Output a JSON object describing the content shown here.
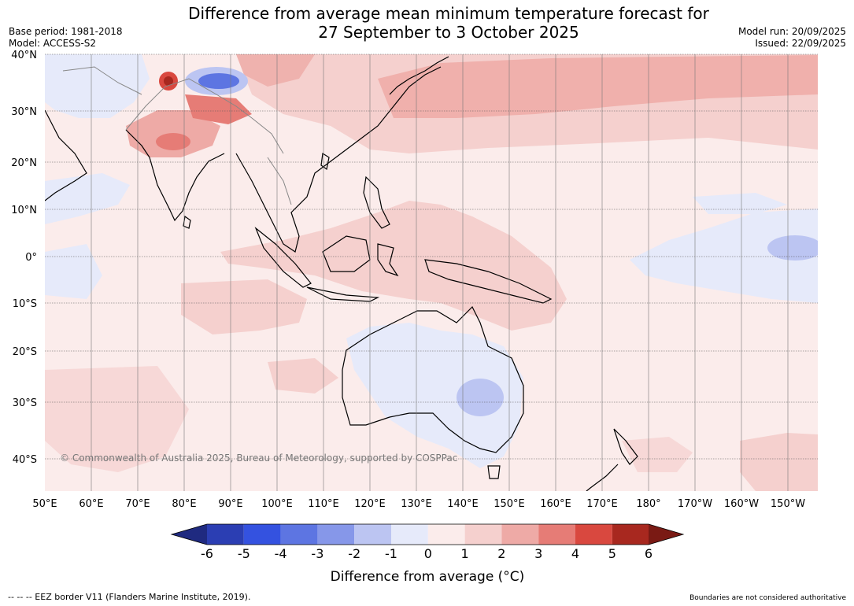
{
  "title_line1": "Difference from average mean minimum temperature forecast for",
  "title_line2": "27 September to 3 October 2025",
  "base_period": "Base period: 1981-2018",
  "model": "Model: ACCESS-S2",
  "model_run": "Model run: 20/09/2025",
  "issued": "Issued: 22/09/2025",
  "copyright": "© Commonwealth of Australia 2025, Bureau of Meteorology, supported by COSPPac",
  "footer_left": "--  --  -- EEZ border V11 (Flanders Marine Institute, 2019).",
  "footer_right": "Boundaries are not considered authoritative",
  "lat_labels": [
    "40°N",
    "30°N",
    "20°N",
    "10°N",
    "0°",
    "10°S",
    "20°S",
    "30°S",
    "40°S"
  ],
  "lon_labels": [
    "50°E",
    "60°E",
    "70°E",
    "80°E",
    "90°E",
    "100°E",
    "110°E",
    "120°E",
    "130°E",
    "140°E",
    "150°E",
    "160°E",
    "170°E",
    "180°",
    "170°W",
    "160°W",
    "150°W"
  ],
  "colorbar": {
    "title": "Difference from average (°C)",
    "ticks": [
      "-6",
      "-5",
      "-4",
      "-3",
      "-2",
      "-1",
      "0",
      "1",
      "2",
      "3",
      "4",
      "5",
      "6"
    ],
    "colors": [
      "#1f2a80",
      "#2b3eb3",
      "#3452e0",
      "#5d75e2",
      "#8697e9",
      "#bcc5f2",
      "#e6eafa",
      "#fbeceb",
      "#f5d0ce",
      "#eeaaa6",
      "#e67c76",
      "#d9483f",
      "#a8281f",
      "#7a1a14"
    ]
  }
}
